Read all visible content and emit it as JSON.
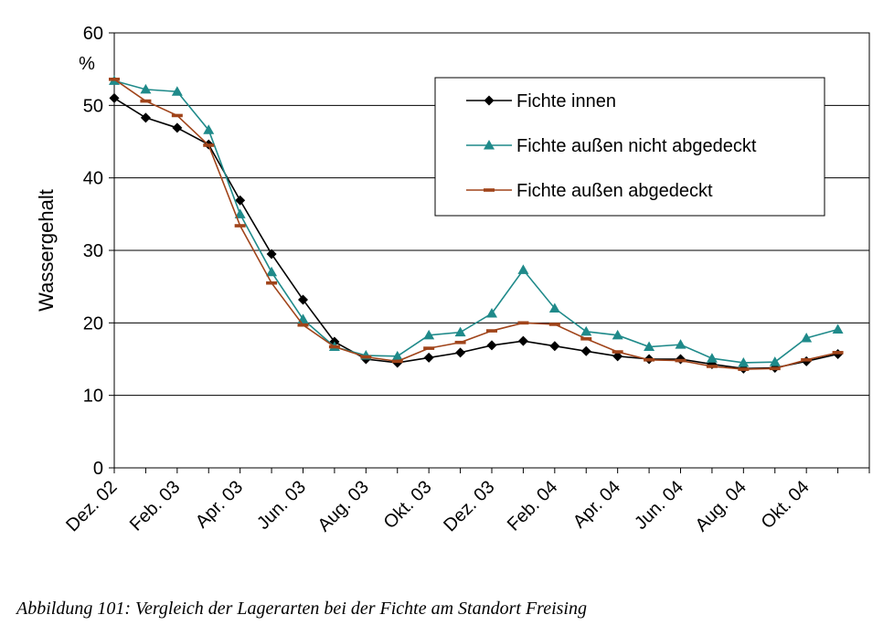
{
  "chart_data": {
    "type": "line",
    "ylabel": "Wassergehalt",
    "yunit": "%",
    "ylim": [
      0,
      60
    ],
    "yticks": [
      0,
      10,
      20,
      30,
      40,
      50,
      60
    ],
    "xlabel": "",
    "x_tick_labels": [
      "Dez. 02",
      "Feb. 03",
      "Apr. 03",
      "Jun. 03",
      "Aug. 03",
      "Okt. 03",
      "Dez. 03",
      "Feb. 04",
      "Apr. 04",
      "Jun. 04",
      "Aug. 04",
      "Okt. 04"
    ],
    "x": [
      "2002-12-01",
      "2003-01-01",
      "2003-02-01",
      "2003-03-01",
      "2003-04-01",
      "2003-05-01",
      "2003-06-01",
      "2003-07-01",
      "2003-08-01",
      "2003-09-01",
      "2003-10-01",
      "2003-11-01",
      "2003-12-01",
      "2004-01-01",
      "2004-02-01",
      "2004-03-01",
      "2004-04-01",
      "2004-05-01",
      "2004-06-01",
      "2004-07-01",
      "2004-08-01",
      "2004-09-01",
      "2004-10-01",
      "2004-11-01"
    ],
    "grid": "horizontal",
    "legend_position": "top-right",
    "series": [
      {
        "name": "Fichte innen",
        "color": "#000000",
        "marker": "diamond",
        "values": [
          51.0,
          48.3,
          46.9,
          44.6,
          36.9,
          29.5,
          23.2,
          17.4,
          15.0,
          14.5,
          15.2,
          15.9,
          16.9,
          17.5,
          16.8,
          16.1,
          15.4,
          15.0,
          15.0,
          14.3,
          13.7,
          13.8,
          14.7,
          15.7
        ]
      },
      {
        "name": "Fichte außen nicht abgedeckt",
        "color": "#1f8a8a",
        "marker": "triangle",
        "values": [
          53.4,
          52.2,
          51.9,
          46.6,
          35.0,
          27.0,
          20.5,
          16.7,
          15.5,
          15.4,
          18.3,
          18.7,
          21.3,
          27.3,
          22.0,
          18.8,
          18.3,
          16.7,
          17.0,
          15.1,
          14.5,
          14.6,
          17.9,
          19.1
        ]
      },
      {
        "name": "Fichte außen abgedeckt",
        "color": "#a0441a",
        "marker": "dash",
        "values": [
          53.6,
          50.6,
          48.6,
          44.5,
          33.4,
          25.5,
          19.7,
          16.7,
          15.3,
          14.7,
          16.5,
          17.3,
          18.9,
          20.0,
          19.8,
          17.8,
          16.0,
          14.9,
          14.8,
          14.0,
          13.6,
          13.7,
          14.9,
          15.9
        ]
      }
    ]
  },
  "caption": "Abbildung 101: Vergleich der Lagerarten bei der Fichte am Standort Freising"
}
